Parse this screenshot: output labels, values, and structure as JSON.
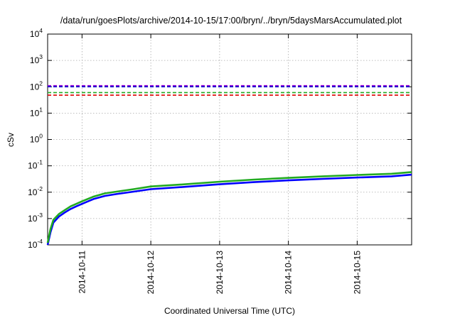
{
  "chart_data": {
    "type": "line",
    "title": "/data/run/goesPlots/archive/2014-10-15/17:00/bryn/../bryn/5daysMarsAccumulated.plot",
    "xlabel": "Coordinated Universal Time (UTC)",
    "ylabel": "cSv",
    "y_scale": "log",
    "ylim": [
      0.0001,
      10000
    ],
    "xlim": [
      "2014-10-10 12:00",
      "2014-10-15 19:00"
    ],
    "grid": true,
    "legend": "none",
    "y_ticks": [
      {
        "value": 0.0001,
        "base": "10",
        "exp": "-4"
      },
      {
        "value": 0.001,
        "base": "10",
        "exp": "-3"
      },
      {
        "value": 0.01,
        "base": "10",
        "exp": "-2"
      },
      {
        "value": 0.1,
        "base": "10",
        "exp": "-1"
      },
      {
        "value": 1,
        "base": "10",
        "exp": "0"
      },
      {
        "value": 10,
        "base": "10",
        "exp": "1"
      },
      {
        "value": 100,
        "base": "10",
        "exp": "2"
      },
      {
        "value": 1000,
        "base": "10",
        "exp": "3"
      },
      {
        "value": 10000,
        "base": "10",
        "exp": "4"
      }
    ],
    "x_ticks": [
      {
        "value": "2014-10-11 00:00",
        "label": "2014-10-11"
      },
      {
        "value": "2014-10-12 00:00",
        "label": "2014-10-12"
      },
      {
        "value": "2014-10-13 00:00",
        "label": "2014-10-13"
      },
      {
        "value": "2014-10-14 00:00",
        "label": "2014-10-14"
      },
      {
        "value": "2014-10-15 00:00",
        "label": "2014-10-15"
      }
    ],
    "thresholds": [
      {
        "value": 110,
        "color": "#9400d3"
      },
      {
        "value": 100,
        "color": "#0000cc"
      },
      {
        "value": 60,
        "color": "#22aa22"
      },
      {
        "value": 48,
        "color": "#dd0000"
      }
    ],
    "series": [
      {
        "color": "#0000ff",
        "x": [
          "2014-10-10 12:00",
          "2014-10-10 13:00",
          "2014-10-10 14:00",
          "2014-10-10 16:00",
          "2014-10-10 18:00",
          "2014-10-10 20:00",
          "2014-10-10 22:00",
          "2014-10-11 00:00",
          "2014-10-11 04:00",
          "2014-10-11 08:00",
          "2014-10-11 12:00",
          "2014-10-11 18:00",
          "2014-10-12 00:00",
          "2014-10-12 12:00",
          "2014-10-13 00:00",
          "2014-10-13 12:00",
          "2014-10-14 00:00",
          "2014-10-14 12:00",
          "2014-10-15 00:00",
          "2014-10-15 12:00",
          "2014-10-15 19:00"
        ],
        "y": [
          0.0001,
          0.0003,
          0.0007,
          0.0012,
          0.0017,
          0.0023,
          0.0029,
          0.0036,
          0.0055,
          0.0072,
          0.0085,
          0.0105,
          0.013,
          0.016,
          0.02,
          0.024,
          0.028,
          0.032,
          0.036,
          0.04,
          0.046
        ]
      },
      {
        "color": "#22aa22",
        "x": [
          "2014-10-10 12:00",
          "2014-10-10 13:00",
          "2014-10-10 14:00",
          "2014-10-10 16:00",
          "2014-10-10 18:00",
          "2014-10-10 20:00",
          "2014-10-10 22:00",
          "2014-10-11 00:00",
          "2014-10-11 04:00",
          "2014-10-11 08:00",
          "2014-10-11 12:00",
          "2014-10-11 18:00",
          "2014-10-12 00:00",
          "2014-10-12 12:00",
          "2014-10-13 00:00",
          "2014-10-13 12:00",
          "2014-10-14 00:00",
          "2014-10-14 12:00",
          "2014-10-15 00:00",
          "2014-10-15 12:00",
          "2014-10-15 19:00"
        ],
        "y": [
          0.00012,
          0.0004,
          0.0009,
          0.0015,
          0.0021,
          0.0029,
          0.0036,
          0.0045,
          0.0068,
          0.009,
          0.0105,
          0.013,
          0.0165,
          0.02,
          0.025,
          0.03,
          0.035,
          0.04,
          0.045,
          0.05,
          0.058
        ]
      }
    ]
  }
}
